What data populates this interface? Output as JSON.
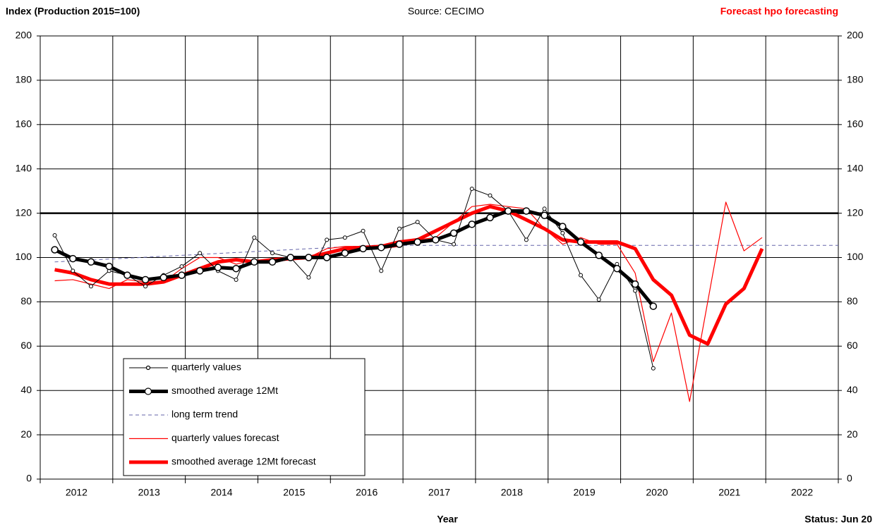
{
  "chart_data": {
    "type": "line",
    "title": "Index (Production 2015=100)",
    "subtitle": "Source: CECIMO",
    "annotation": "Forecast hpo forecasting",
    "xlabel": "Year",
    "status": "Status: Jun 20",
    "xlim": [
      2012,
      2023
    ],
    "xgrid": [
      2012,
      2013,
      2014,
      2015,
      2016,
      2017,
      2018,
      2019,
      2020,
      2021,
      2022,
      2023
    ],
    "xticks": [
      {
        "value": 2012.5,
        "label": "2012"
      },
      {
        "value": 2013.5,
        "label": "2013"
      },
      {
        "value": 2014.5,
        "label": "2014"
      },
      {
        "value": 2015.5,
        "label": "2015"
      },
      {
        "value": 2016.5,
        "label": "2016"
      },
      {
        "value": 2017.5,
        "label": "2017"
      },
      {
        "value": 2018.5,
        "label": "2018"
      },
      {
        "value": 2019.5,
        "label": "2019"
      },
      {
        "value": 2020.5,
        "label": "2020"
      },
      {
        "value": 2021.5,
        "label": "2021"
      },
      {
        "value": 2022.5,
        "label": "2022"
      }
    ],
    "ylim": [
      0,
      200
    ],
    "yticks": [
      0,
      20,
      40,
      60,
      80,
      100,
      120,
      140,
      160,
      180,
      200
    ],
    "y2lim": [
      0,
      200
    ],
    "y2ticks": [
      0,
      20,
      40,
      60,
      80,
      100,
      120,
      140,
      160,
      180,
      200
    ],
    "highlight_line": 120,
    "grid": true,
    "x": [
      2012.2,
      2012.45,
      2012.7,
      2012.95,
      2013.2,
      2013.45,
      2013.7,
      2013.95,
      2014.2,
      2014.45,
      2014.7,
      2014.95,
      2015.2,
      2015.45,
      2015.7,
      2015.95,
      2016.2,
      2016.45,
      2016.7,
      2016.95,
      2017.2,
      2017.45,
      2017.7,
      2017.95,
      2018.2,
      2018.45,
      2018.7,
      2018.95,
      2019.2,
      2019.45,
      2019.7,
      2019.95,
      2020.2,
      2020.45,
      2020.7,
      2020.95,
      2021.2,
      2021.45,
      2021.7,
      2021.95
    ],
    "series": [
      {
        "name": "quarterly values",
        "color": "#000000",
        "width": 1,
        "marker": 2.5,
        "values": [
          110,
          94,
          87,
          94,
          92,
          87,
          92,
          96,
          102,
          94,
          90,
          109,
          102,
          100,
          91,
          108,
          109,
          112,
          94,
          113,
          116,
          108,
          106,
          131,
          128,
          121,
          108,
          122,
          111,
          92,
          81,
          97,
          85,
          50,
          null,
          null,
          null,
          null,
          null,
          null
        ]
      },
      {
        "name": "smoothed average 12Mt",
        "color": "#000000",
        "width": 5,
        "marker": 4.5,
        "values": [
          103.5,
          99.5,
          98,
          96,
          92,
          90,
          91,
          92,
          94,
          95.5,
          95,
          98,
          98,
          100,
          100,
          100,
          102,
          104,
          104.5,
          106,
          107,
          108,
          111,
          115,
          118,
          121,
          121,
          119,
          114,
          107,
          101,
          95,
          88,
          78,
          null,
          null,
          null,
          null,
          null,
          null
        ]
      },
      {
        "name": "long term trend",
        "color": "#6666aa",
        "width": 1,
        "dash": "5 4",
        "x": [
          2012.2,
          2016.6,
          2023
        ],
        "values": [
          98,
          105.5,
          105.5
        ]
      },
      {
        "name": "quarterly values forecast",
        "color": "#ff0000",
        "width": 1.2,
        "values": [
          89.5,
          90,
          88,
          86,
          90,
          89,
          89,
          95,
          100,
          100,
          97,
          99,
          98,
          99,
          100,
          104,
          105,
          105,
          104,
          105,
          108,
          109,
          116,
          123,
          124,
          123,
          122,
          113,
          106,
          109,
          106,
          106,
          93,
          53,
          75,
          35,
          80,
          125,
          103,
          109
        ]
      },
      {
        "name": "smoothed average 12Mt forecast",
        "color": "#ff0000",
        "width": 5,
        "values": [
          94.5,
          93,
          90,
          88,
          88,
          88,
          89,
          92,
          95,
          98,
          99,
          98,
          99,
          99.5,
          100,
          102,
          104,
          104.5,
          105,
          107,
          108,
          112,
          116,
          120,
          123,
          121,
          117,
          113,
          108,
          107,
          107,
          107,
          104,
          90,
          83,
          65,
          61,
          79,
          86,
          104
        ]
      }
    ]
  }
}
